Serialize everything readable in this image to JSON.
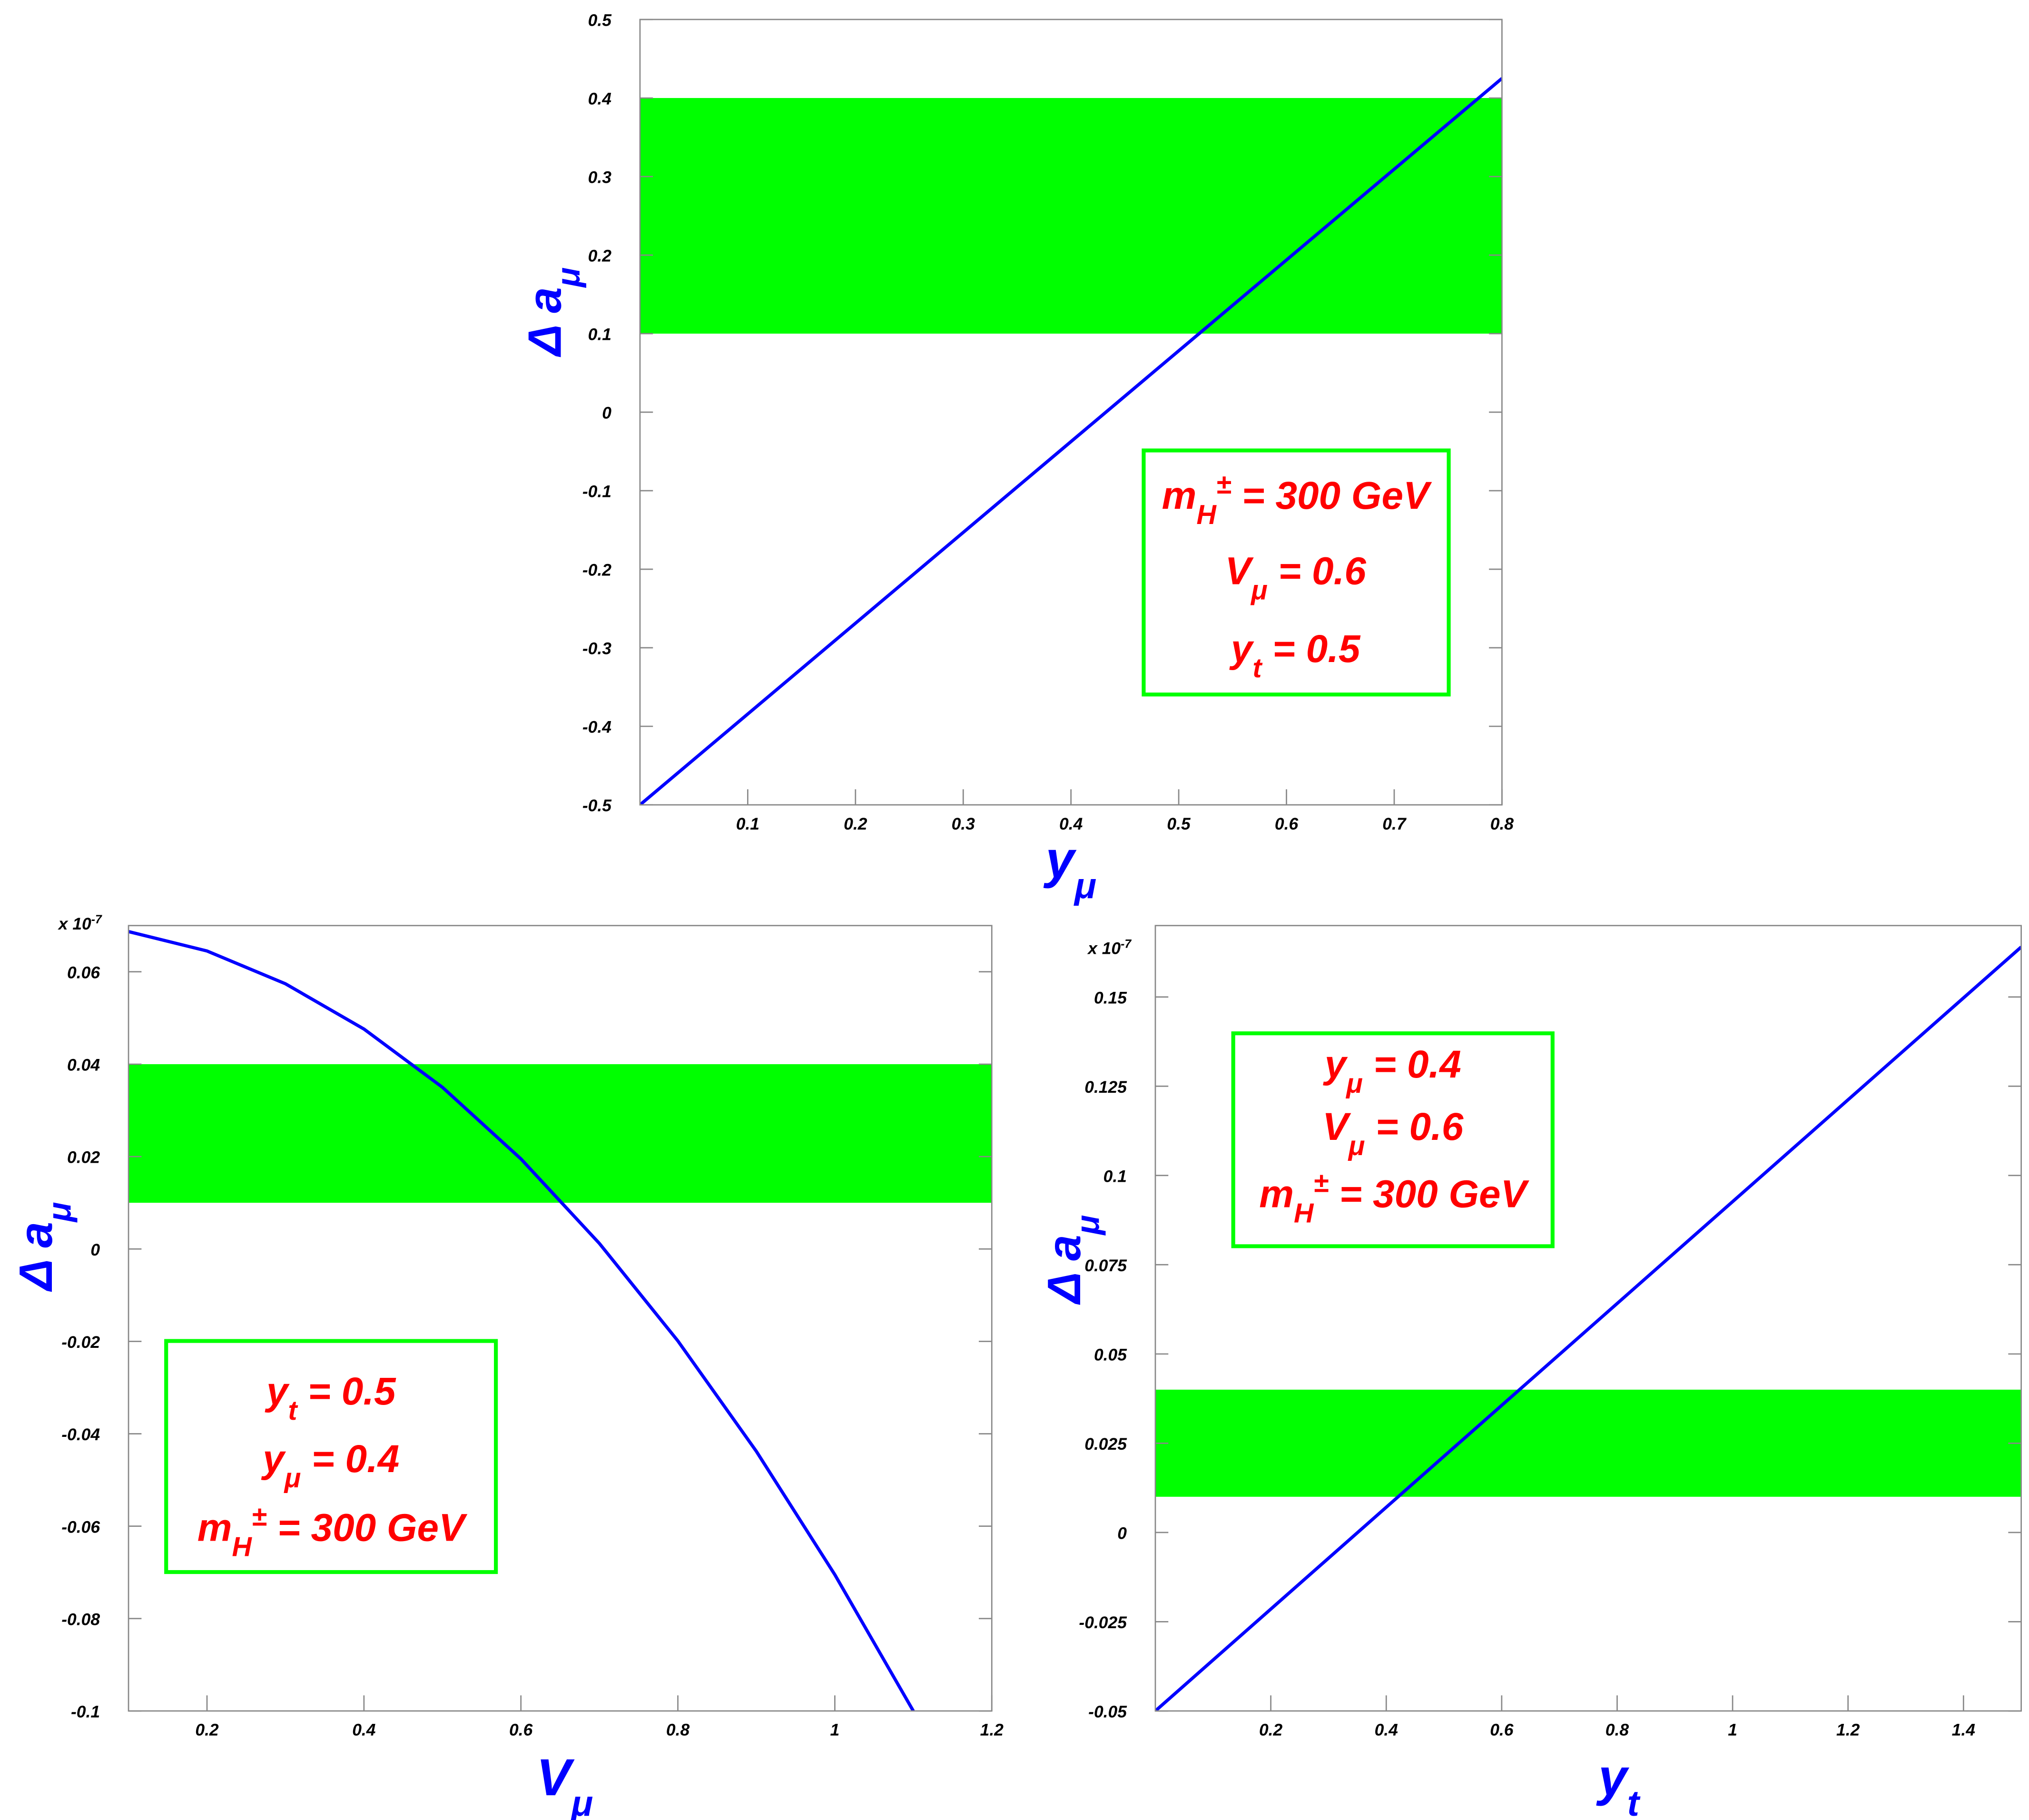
{
  "chart_data": [
    {
      "type": "line",
      "xlim": [
        0,
        0.8
      ],
      "xticks": [
        0.1,
        0.2,
        0.3,
        0.4,
        0.5,
        0.6,
        0.7,
        0.8
      ],
      "ylim": [
        -0.5,
        0.5
      ],
      "yticks": [
        -0.5,
        -0.4,
        -0.3,
        -0.2,
        -0.1,
        0,
        0.1,
        0.2,
        0.3,
        0.4,
        0.5
      ],
      "x_label": [
        {
          "text": "y"
        },
        {
          "sub": "μ"
        }
      ],
      "y_label": [
        {
          "text": "Δ a"
        },
        {
          "sub": "μ"
        }
      ],
      "band": {
        "range": [
          0.1,
          0.4
        ],
        "color": "#00ff00"
      },
      "series": [
        {
          "color": "#0000ff",
          "x": [
            0,
            0.8
          ],
          "values": [
            -0.5,
            0.425
          ]
        }
      ],
      "annotation": {
        "color": "#ff0000",
        "border": "#00ff00",
        "lines": [
          [
            {
              "text": "m"
            },
            {
              "sub": "H"
            },
            {
              "sup": "±"
            },
            {
              "text": " = 300 GeV"
            }
          ],
          [
            {
              "text": "V"
            },
            {
              "sub": "μ"
            },
            {
              "text": " = 0.6"
            }
          ],
          [
            {
              "text": "y"
            },
            {
              "sub": "t"
            },
            {
              "text": " = 0.5"
            }
          ]
        ]
      }
    },
    {
      "type": "line",
      "xlim": [
        0.1,
        1.2
      ],
      "xticks": [
        0.2,
        0.4,
        0.6,
        0.8,
        1,
        1.2
      ],
      "ylim": [
        -0.1,
        0.07
      ],
      "yticks": [
        -0.1,
        -0.08,
        -0.06,
        -0.04,
        -0.02,
        0,
        0.02,
        0.04,
        0.06
      ],
      "multiplier": [
        {
          "text": "x 10"
        },
        {
          "sup": "-7"
        }
      ],
      "x_label": [
        {
          "text": "V"
        },
        {
          "sub": "μ"
        }
      ],
      "y_label": [
        {
          "text": "Δ a"
        },
        {
          "sub": "μ"
        }
      ],
      "band": {
        "range": [
          0.01,
          0.04
        ],
        "color": "#00ff00"
      },
      "series": [
        {
          "color": "#0000ff",
          "x": [
            0.1,
            0.2,
            0.3,
            0.4,
            0.5,
            0.6,
            0.7,
            0.8,
            0.9,
            1.0,
            1.1
          ],
          "values": [
            0.0687,
            0.0645,
            0.0574,
            0.0476,
            0.035,
            0.0195,
            0.0012,
            -0.0199,
            -0.0438,
            -0.0705,
            -0.1
          ]
        }
      ],
      "annotation": {
        "color": "#ff0000",
        "border": "#00ff00",
        "lines": [
          [
            {
              "text": "y"
            },
            {
              "sub": "t"
            },
            {
              "text": " = 0.5"
            }
          ],
          [
            {
              "text": "y"
            },
            {
              "sub": "μ"
            },
            {
              "text": " = 0.4"
            }
          ],
          [
            {
              "text": "m"
            },
            {
              "sub": "H"
            },
            {
              "sup": "±"
            },
            {
              "text": " = 300 GeV"
            }
          ]
        ]
      }
    },
    {
      "type": "line",
      "xlim": [
        0,
        1.5
      ],
      "xticks": [
        0.2,
        0.4,
        0.6,
        0.8,
        1,
        1.2,
        1.4
      ],
      "ylim": [
        -0.05,
        0.17
      ],
      "yticks": [
        -0.05,
        -0.025,
        0,
        0.025,
        0.05,
        0.075,
        0.1,
        0.125,
        0.15
      ],
      "multiplier": [
        {
          "text": "x 10"
        },
        {
          "sup": "-7"
        }
      ],
      "x_label": [
        {
          "text": "y"
        },
        {
          "sub": "t"
        }
      ],
      "y_label": [
        {
          "text": "Δ a"
        },
        {
          "sub": "μ"
        }
      ],
      "band": {
        "range": [
          0.01,
          0.04
        ],
        "color": "#00ff00"
      },
      "series": [
        {
          "color": "#0000ff",
          "x": [
            0,
            1.5
          ],
          "values": [
            -0.05,
            0.164
          ]
        }
      ],
      "annotation": {
        "color": "#ff0000",
        "border": "#00ff00",
        "lines": [
          [
            {
              "text": "y"
            },
            {
              "sub": "μ"
            },
            {
              "text": " = 0.4"
            }
          ],
          [
            {
              "text": "V"
            },
            {
              "sub": "μ"
            },
            {
              "text": " = 0.6"
            }
          ],
          [
            {
              "text": "m"
            },
            {
              "sub": "H"
            },
            {
              "sup": "±"
            },
            {
              "text": " = 300 GeV"
            }
          ]
        ]
      }
    }
  ]
}
